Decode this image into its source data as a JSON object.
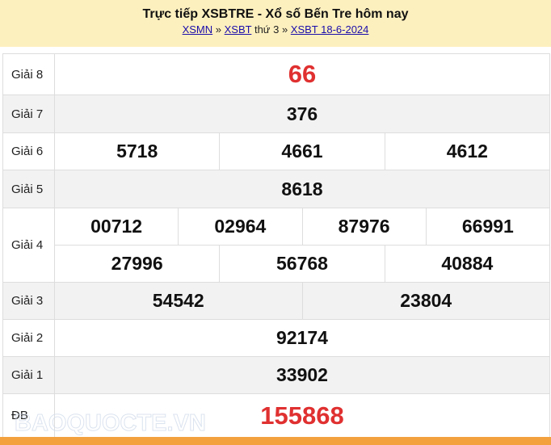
{
  "header": {
    "title": "Trực tiếp XSBTRE - Xổ số Bến Tre hôm nay",
    "crumb": {
      "link1": "XSMN",
      "sep1": " » ",
      "link2": "XSBT",
      "day": " thứ 3 » ",
      "link3": "XSBT 18-6-2024"
    }
  },
  "prizes": [
    {
      "label": "Giải 8",
      "rows": [
        [
          "66"
        ]
      ],
      "highlight": true
    },
    {
      "label": "Giải 7",
      "rows": [
        [
          "376"
        ]
      ]
    },
    {
      "label": "Giải 6",
      "rows": [
        [
          "5718",
          "4661",
          "4612"
        ]
      ]
    },
    {
      "label": "Giải 5",
      "rows": [
        [
          "8618"
        ]
      ]
    },
    {
      "label": "Giải 4",
      "rows": [
        [
          "00712",
          "02964",
          "87976",
          "66991"
        ],
        [
          "27996",
          "56768",
          "40884"
        ]
      ]
    },
    {
      "label": "Giải 3",
      "rows": [
        [
          "54542",
          "23804"
        ]
      ]
    },
    {
      "label": "Giải 2",
      "rows": [
        [
          "92174"
        ]
      ]
    },
    {
      "label": "Giải 1",
      "rows": [
        [
          "33902"
        ]
      ]
    },
    {
      "label": "ĐB",
      "rows": [
        [
          "155868"
        ]
      ],
      "highlight": true
    }
  ],
  "watermark": "BAOQUOCTE.VN",
  "colors": {
    "header_bg": "#fdf0bf",
    "highlight": "#e03030",
    "footer_bar": "#f3a13f"
  }
}
